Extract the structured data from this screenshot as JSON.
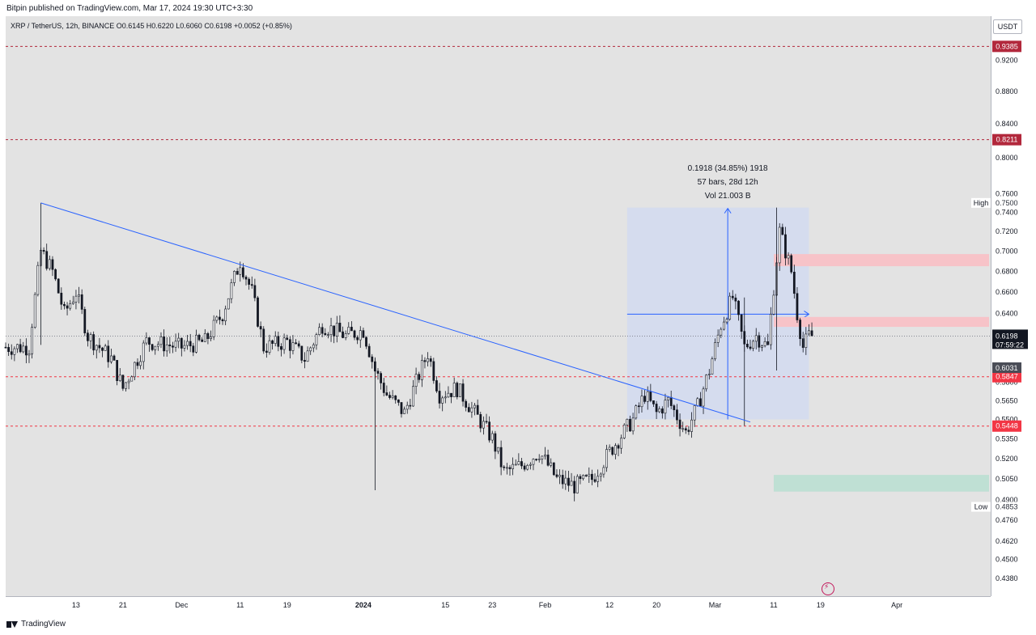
{
  "header": {
    "published": "Bitpin published on TradingView.com, Mar 17, 2024 19:30 UTC+3:30",
    "symbol_line": "XRP / TetherUS, 12h, BINANCE  O0.6145  H0.6220  L0.6060  C0.6198  +0.0052 (+0.85%)"
  },
  "currency_button": "USDT",
  "footer": {
    "brand": "TradingView"
  },
  "colors": {
    "up": "#ffffff",
    "down": "#131722",
    "trendline": "#2962ff",
    "resistance": "#b2283c",
    "support": "#f23645",
    "supply_zone": "#f7c3c8",
    "demand_zone": "#bfe0d4",
    "measure_box": "#d5dcee"
  },
  "chart_data": {
    "type": "candlestick",
    "title": "",
    "xlabel": "",
    "ylabel": "",
    "y_axis": {
      "ticks": [
        0.438,
        0.45,
        0.462,
        0.476,
        0.49,
        0.505,
        0.52,
        0.535,
        0.55,
        0.565,
        0.58,
        0.64,
        0.66,
        0.68,
        0.7,
        0.72,
        0.74,
        0.76,
        0.8,
        0.84,
        0.88,
        0.92
      ],
      "tick_labels": [
        "0.4380",
        "0.4500",
        "0.4620",
        "0.4760",
        "0.4900",
        "0.5050",
        "0.5200",
        "0.5350",
        "0.5500",
        "0.5650",
        "0.5800",
        "0.6400",
        "0.6600",
        "0.6800",
        "0.7000",
        "0.7200",
        "0.7400",
        "0.7600",
        "0.8000",
        "0.8400",
        "0.8800",
        "0.9200"
      ],
      "scale": "log",
      "range": [
        0.427,
        0.98
      ]
    },
    "x_axis": {
      "labels": [
        "13",
        "21",
        "Dec",
        "11",
        "19",
        "2024",
        "15",
        "23",
        "Feb",
        "12",
        "20",
        "Mar",
        "11",
        "19",
        "Apr"
      ],
      "dates": [
        "2023-11-13",
        "2023-11-21",
        "2023-12-01",
        "2023-12-11",
        "2023-12-19",
        "2024-01-01",
        "2024-01-15",
        "2024-01-23",
        "2024-02-01",
        "2024-02-12",
        "2024-02-20",
        "2024-03-01",
        "2024-03-11",
        "2024-03-19",
        "2024-04-01"
      ],
      "range": [
        "2023-11-01",
        "2024-04-17"
      ]
    },
    "ohlc_key_points": [
      {
        "t": "2023-11-05",
        "p": 0.61
      },
      {
        "t": "2023-11-07",
        "p": 0.7
      },
      {
        "t": "2023-11-09",
        "p": 0.68
      },
      {
        "t": "2023-11-11",
        "p": 0.64
      },
      {
        "t": "2023-11-13",
        "p": 0.66
      },
      {
        "t": "2023-11-15",
        "p": 0.62
      },
      {
        "t": "2023-11-19",
        "p": 0.6
      },
      {
        "t": "2023-11-21",
        "p": 0.575
      },
      {
        "t": "2023-11-25",
        "p": 0.615
      },
      {
        "t": "2023-12-01",
        "p": 0.61
      },
      {
        "t": "2023-12-05",
        "p": 0.615
      },
      {
        "t": "2023-12-08",
        "p": 0.64
      },
      {
        "t": "2023-12-11",
        "p": 0.69
      },
      {
        "t": "2023-12-13",
        "p": 0.66
      },
      {
        "t": "2023-12-15",
        "p": 0.61
      },
      {
        "t": "2023-12-19",
        "p": 0.615
      },
      {
        "t": "2023-12-22",
        "p": 0.6
      },
      {
        "t": "2023-12-25",
        "p": 0.63
      },
      {
        "t": "2023-12-29",
        "p": 0.62
      },
      {
        "t": "2024-01-01",
        "p": 0.625
      },
      {
        "t": "2024-01-03",
        "p": 0.59
      },
      {
        "t": "2024-01-05",
        "p": 0.57
      },
      {
        "t": "2024-01-08",
        "p": 0.555
      },
      {
        "t": "2024-01-10",
        "p": 0.58
      },
      {
        "t": "2024-01-12",
        "p": 0.605
      },
      {
        "t": "2024-01-14",
        "p": 0.57
      },
      {
        "t": "2024-01-17",
        "p": 0.575
      },
      {
        "t": "2024-01-20",
        "p": 0.555
      },
      {
        "t": "2024-01-23",
        "p": 0.535
      },
      {
        "t": "2024-01-25",
        "p": 0.51
      },
      {
        "t": "2024-01-28",
        "p": 0.515
      },
      {
        "t": "2024-01-31",
        "p": 0.525
      },
      {
        "t": "2024-02-03",
        "p": 0.505
      },
      {
        "t": "2024-02-06",
        "p": 0.5
      },
      {
        "t": "2024-02-09",
        "p": 0.505
      },
      {
        "t": "2024-02-12",
        "p": 0.525
      },
      {
        "t": "2024-02-16",
        "p": 0.55
      },
      {
        "t": "2024-02-18",
        "p": 0.57
      },
      {
        "t": "2024-02-20",
        "p": 0.555
      },
      {
        "t": "2024-02-22",
        "p": 0.565
      },
      {
        "t": "2024-02-25",
        "p": 0.54
      },
      {
        "t": "2024-02-27",
        "p": 0.56
      },
      {
        "t": "2024-02-29",
        "p": 0.59
      },
      {
        "t": "2024-03-02",
        "p": 0.63
      },
      {
        "t": "2024-03-04",
        "p": 0.655
      },
      {
        "t": "2024-03-06",
        "p": 0.61
      },
      {
        "t": "2024-03-08",
        "p": 0.62
      },
      {
        "t": "2024-03-10",
        "p": 0.61
      },
      {
        "t": "2024-03-12",
        "p": 0.72
      },
      {
        "t": "2024-03-13",
        "p": 0.7
      },
      {
        "t": "2024-03-14",
        "p": 0.68
      },
      {
        "t": "2024-03-15",
        "p": 0.64
      },
      {
        "t": "2024-03-16",
        "p": 0.61
      },
      {
        "t": "2024-03-17",
        "p": 0.6198
      }
    ],
    "trendline": {
      "from": {
        "t": "2023-11-07",
        "p": 0.75
      },
      "to": {
        "t": "2024-03-07",
        "p": 0.548
      }
    },
    "horizontal_levels": [
      {
        "p": 0.9385,
        "label": "0.9385",
        "style": "resistance"
      },
      {
        "p": 0.8211,
        "label": "0.8211",
        "style": "resistance"
      },
      {
        "p": 0.5847,
        "label": "0.5847",
        "style": "support"
      },
      {
        "p": 0.5448,
        "label": "0.5448",
        "style": "support"
      }
    ],
    "zones": [
      {
        "from": "2024-03-11",
        "p_low": 0.685,
        "p_high": 0.697,
        "style": "supply_zone"
      },
      {
        "from": "2024-03-11",
        "p_low": 0.628,
        "p_high": 0.637,
        "style": "supply_zone"
      },
      {
        "from": "2024-03-11",
        "p_low": 0.496,
        "p_high": 0.508,
        "style": "demand_zone"
      }
    ],
    "measure": {
      "from": "2024-02-15",
      "to": "2024-03-17",
      "p_low": 0.55,
      "p_high": 0.745,
      "label_lines": [
        "0.1918 (34.85%) 1918",
        "57 bars, 28d 12h",
        "Vol 21.003 B"
      ]
    },
    "price_badges": [
      {
        "p": 0.6198,
        "label": "0.6198",
        "sub": "07:59:22",
        "style": "last"
      },
      {
        "p": 0.6031,
        "label": "0.6031",
        "style": "prev"
      }
    ],
    "high": {
      "label": "High",
      "p": 0.75,
      "value": "0.7500"
    },
    "low": {
      "label": "Low",
      "p": 0.4853,
      "value": "0.4853"
    }
  }
}
